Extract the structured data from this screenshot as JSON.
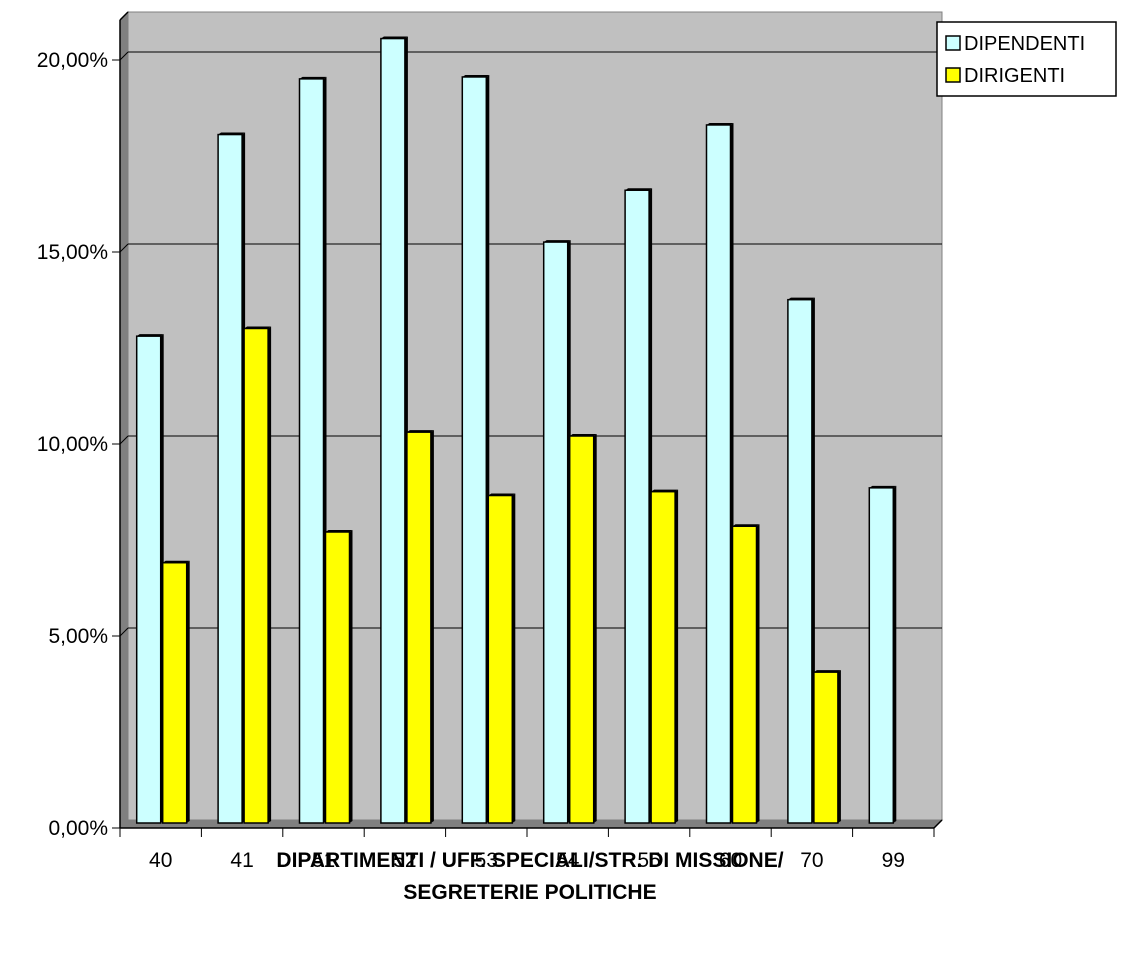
{
  "chart_data": {
    "type": "bar",
    "categories": [
      "40",
      "41",
      "51",
      "52",
      "53",
      "54",
      "55",
      "60",
      "70",
      "99"
    ],
    "series": [
      {
        "name": "DIPENDENTI",
        "values": [
          12.6,
          17.85,
          19.3,
          20.35,
          19.35,
          15.05,
          16.4,
          18.1,
          13.55,
          8.65
        ],
        "color": "#CCFFFF"
      },
      {
        "name": "DIRIGENTI",
        "values": [
          6.7,
          12.8,
          7.5,
          10.1,
          8.45,
          10.0,
          8.55,
          7.65,
          3.85,
          0
        ],
        "color": "#FFFF00"
      }
    ],
    "xlabel": "DIPARTIMENTI / UFF. SPECIALI/STR. DI MISSIONE/ SEGRETERIE POLITICHE",
    "xlabel_lines": [
      "DIPARTIMENTI / UFF. SPECIALI/STR. DI MISSIONE/",
      "SEGRETERIE POLITICHE"
    ],
    "ylabel": "",
    "ylim": [
      0,
      20
    ],
    "yticks": [
      "0,00%",
      "5,00%",
      "10,00%",
      "15,00%",
      "20,00%"
    ],
    "grid": true,
    "legend_position": "top-right",
    "plot_background": "#C0C0C0",
    "wall_color": "#808080"
  }
}
